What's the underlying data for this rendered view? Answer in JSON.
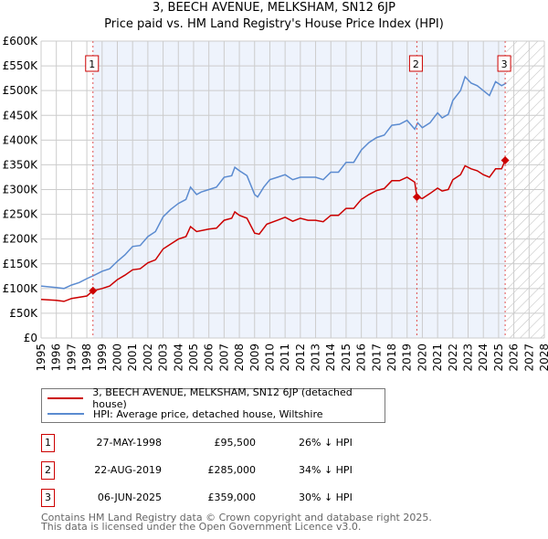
{
  "title": "3, BEECH AVENUE, MELKSHAM, SN12 6JP",
  "subtitle": "Price paid vs. HM Land Registry's House Price Index (HPI)",
  "chart_data": {
    "type": "line",
    "title": "3, BEECH AVENUE, MELKSHAM, SN12 6JP — Price paid vs. HM Land Registry's House Price Index (HPI)",
    "xlim": [
      1995,
      2028
    ],
    "ylim": [
      0,
      600000
    ],
    "x_ticks": [
      "1995",
      "1996",
      "1997",
      "1998",
      "1999",
      "2000",
      "2001",
      "2002",
      "2003",
      "2004",
      "2005",
      "2006",
      "2007",
      "2008",
      "2009",
      "2010",
      "2011",
      "2012",
      "2013",
      "2014",
      "2015",
      "2016",
      "2017",
      "2018",
      "2019",
      "2020",
      "2021",
      "2022",
      "2023",
      "2024",
      "2025",
      "2026",
      "2027",
      "2028"
    ],
    "y_ticks": [
      {
        "value": 0,
        "label": "£0"
      },
      {
        "value": 50000,
        "label": "£50K"
      },
      {
        "value": 100000,
        "label": "£100K"
      },
      {
        "value": 150000,
        "label": "£150K"
      },
      {
        "value": 200000,
        "label": "£200K"
      },
      {
        "value": 250000,
        "label": "£250K"
      },
      {
        "value": 300000,
        "label": "£300K"
      },
      {
        "value": 350000,
        "label": "£350K"
      },
      {
        "value": 400000,
        "label": "£400K"
      },
      {
        "value": 450000,
        "label": "£450K"
      },
      {
        "value": 500000,
        "label": "£500K"
      },
      {
        "value": 550000,
        "label": "£550K"
      },
      {
        "value": 600000,
        "label": "£600K"
      }
    ],
    "grid": true,
    "shaded_range": [
      1998.4,
      2025.43
    ],
    "hatched_range": [
      2025.5,
      2028
    ],
    "series": [
      {
        "name": "3, BEECH AVENUE, MELKSHAM, SN12 6JP (detached house)",
        "color": "#cc0000",
        "points": [
          [
            1995,
            78
          ],
          [
            1996,
            76
          ],
          [
            1996.5,
            74
          ],
          [
            1997,
            80
          ],
          [
            1998,
            85
          ],
          [
            1998.4,
            95.5
          ],
          [
            1999,
            100
          ],
          [
            1999.5,
            105
          ],
          [
            2000,
            118
          ],
          [
            2000.5,
            127
          ],
          [
            2001,
            138
          ],
          [
            2001.5,
            140
          ],
          [
            2002,
            152
          ],
          [
            2002.5,
            158
          ],
          [
            2003,
            180
          ],
          [
            2003.5,
            190
          ],
          [
            2004,
            200
          ],
          [
            2004.5,
            205
          ],
          [
            2004.8,
            225
          ],
          [
            2005.2,
            215
          ],
          [
            2006,
            220
          ],
          [
            2006.5,
            222
          ],
          [
            2007,
            238
          ],
          [
            2007.5,
            242
          ],
          [
            2007.7,
            255
          ],
          [
            2008,
            248
          ],
          [
            2008.5,
            242
          ],
          [
            2009,
            212
          ],
          [
            2009.3,
            210
          ],
          [
            2009.8,
            230
          ],
          [
            2010.5,
            238
          ],
          [
            2011,
            244
          ],
          [
            2011.5,
            236
          ],
          [
            2012,
            242
          ],
          [
            2012.5,
            238
          ],
          [
            2013,
            238
          ],
          [
            2013.5,
            235
          ],
          [
            2014,
            248
          ],
          [
            2014.5,
            248
          ],
          [
            2015,
            262
          ],
          [
            2015.5,
            262
          ],
          [
            2016,
            280
          ],
          [
            2016.5,
            290
          ],
          [
            2017,
            298
          ],
          [
            2017.5,
            302
          ],
          [
            2018,
            318
          ],
          [
            2018.5,
            318
          ],
          [
            2019,
            325
          ],
          [
            2019.5,
            315
          ],
          [
            2019.64,
            285
          ],
          [
            2020,
            282
          ],
          [
            2020.5,
            292
          ],
          [
            2021,
            303
          ],
          [
            2021.3,
            297
          ],
          [
            2021.7,
            300
          ],
          [
            2022,
            320
          ],
          [
            2022.5,
            330
          ],
          [
            2022.8,
            348
          ],
          [
            2023.2,
            342
          ],
          [
            2023.6,
            338
          ],
          [
            2024,
            330
          ],
          [
            2024.4,
            325
          ],
          [
            2024.8,
            342
          ],
          [
            2025.2,
            342
          ],
          [
            2025.43,
            359
          ]
        ]
      },
      {
        "name": "HPI: Average price, detached house, Wiltshire",
        "color": "#5b8bd0",
        "points": [
          [
            1995,
            105
          ],
          [
            1996,
            102
          ],
          [
            1996.5,
            100
          ],
          [
            1997,
            107
          ],
          [
            1997.5,
            112
          ],
          [
            1998,
            120
          ],
          [
            1998.5,
            127
          ],
          [
            1999,
            135
          ],
          [
            1999.5,
            140
          ],
          [
            2000,
            155
          ],
          [
            2000.5,
            168
          ],
          [
            2001,
            185
          ],
          [
            2001.5,
            187
          ],
          [
            2002,
            205
          ],
          [
            2002.5,
            215
          ],
          [
            2003,
            245
          ],
          [
            2003.5,
            260
          ],
          [
            2004,
            272
          ],
          [
            2004.5,
            280
          ],
          [
            2004.8,
            305
          ],
          [
            2005.2,
            290
          ],
          [
            2005.5,
            295
          ],
          [
            2006,
            300
          ],
          [
            2006.5,
            305
          ],
          [
            2007,
            325
          ],
          [
            2007.5,
            328
          ],
          [
            2007.7,
            345
          ],
          [
            2008,
            338
          ],
          [
            2008.5,
            328
          ],
          [
            2009,
            290
          ],
          [
            2009.2,
            285
          ],
          [
            2009.6,
            305
          ],
          [
            2010,
            320
          ],
          [
            2010.5,
            325
          ],
          [
            2011,
            330
          ],
          [
            2011.5,
            320
          ],
          [
            2012,
            325
          ],
          [
            2012.5,
            325
          ],
          [
            2013,
            325
          ],
          [
            2013.5,
            320
          ],
          [
            2014,
            335
          ],
          [
            2014.5,
            335
          ],
          [
            2015,
            355
          ],
          [
            2015.5,
            355
          ],
          [
            2016,
            380
          ],
          [
            2016.5,
            395
          ],
          [
            2017,
            405
          ],
          [
            2017.5,
            410
          ],
          [
            2018,
            430
          ],
          [
            2018.5,
            432
          ],
          [
            2019,
            440
          ],
          [
            2019.5,
            422
          ],
          [
            2019.7,
            435
          ],
          [
            2020,
            425
          ],
          [
            2020.5,
            435
          ],
          [
            2021,
            455
          ],
          [
            2021.3,
            445
          ],
          [
            2021.7,
            452
          ],
          [
            2022,
            480
          ],
          [
            2022.5,
            500
          ],
          [
            2022.8,
            528
          ],
          [
            2023.2,
            515
          ],
          [
            2023.6,
            510
          ],
          [
            2024,
            500
          ],
          [
            2024.4,
            490
          ],
          [
            2024.8,
            518
          ],
          [
            2025.2,
            510
          ],
          [
            2025.5,
            515
          ]
        ]
      }
    ],
    "y_unit_points": 1000,
    "sales": [
      {
        "num": "1",
        "x": 1998.4,
        "value": 95500
      },
      {
        "num": "2",
        "x": 2019.64,
        "value": 285000
      },
      {
        "num": "3",
        "x": 2025.43,
        "value": 359000
      }
    ]
  },
  "legend": {
    "property": "3, BEECH AVENUE, MELKSHAM, SN12 6JP (detached house)",
    "hpi": "HPI: Average price, detached house, Wiltshire"
  },
  "sales_table": [
    {
      "num": "1",
      "date": "27-MAY-1998",
      "price": "£95,500",
      "hpi": "26% ↓ HPI"
    },
    {
      "num": "2",
      "date": "22-AUG-2019",
      "price": "£285,000",
      "hpi": "34% ↓ HPI"
    },
    {
      "num": "3",
      "date": "06-JUN-2025",
      "price": "£359,000",
      "hpi": "30% ↓ HPI"
    }
  ],
  "footer": {
    "line1": "Contains HM Land Registry data © Crown copyright and database right 2025.",
    "line2": "This data is licensed under the Open Government Licence v3.0."
  }
}
